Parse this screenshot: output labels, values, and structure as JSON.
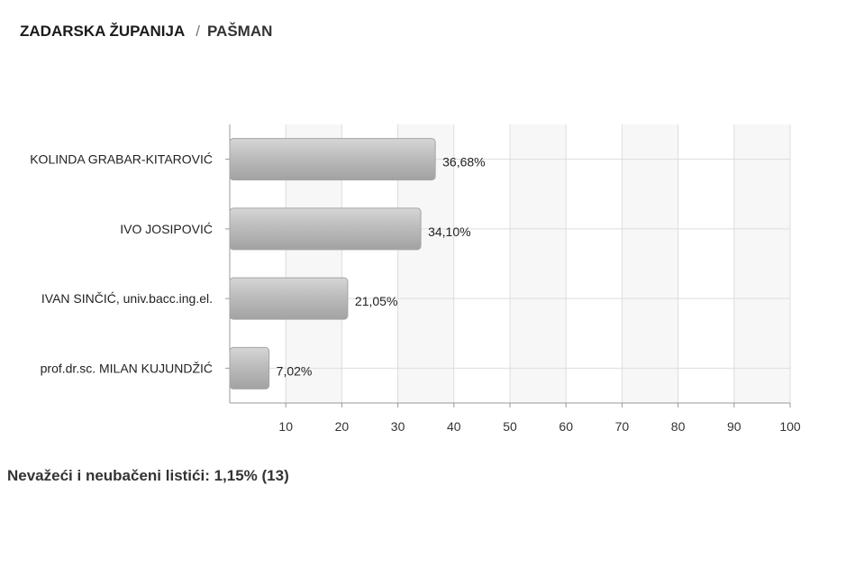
{
  "breadcrumb": {
    "region": "ZADARSKA ŽUPANIJA",
    "separator": "/",
    "place": "PAŠMAN"
  },
  "chart_data": {
    "type": "bar",
    "orientation": "horizontal",
    "categories": [
      "KOLINDA GRABAR-KITAROVIĆ",
      "IVO JOSIPOVIĆ",
      "IVAN SINČIĆ, univ.bacc.ing.el.",
      "prof.dr.sc. MILAN KUJUNDŽIĆ"
    ],
    "values": [
      36.68,
      34.1,
      21.05,
      7.02
    ],
    "value_labels": [
      "36,68%",
      "34,10%",
      "21,05%",
      "7,02%"
    ],
    "xlim": [
      0,
      100
    ],
    "x_ticks": [
      10,
      20,
      30,
      40,
      50,
      60,
      70,
      80,
      90,
      100
    ],
    "grid": true,
    "bar_color": "#b3b3b3"
  },
  "footer": {
    "text": "Nevažeći i neubačeni listići: 1,15% (13)"
  }
}
